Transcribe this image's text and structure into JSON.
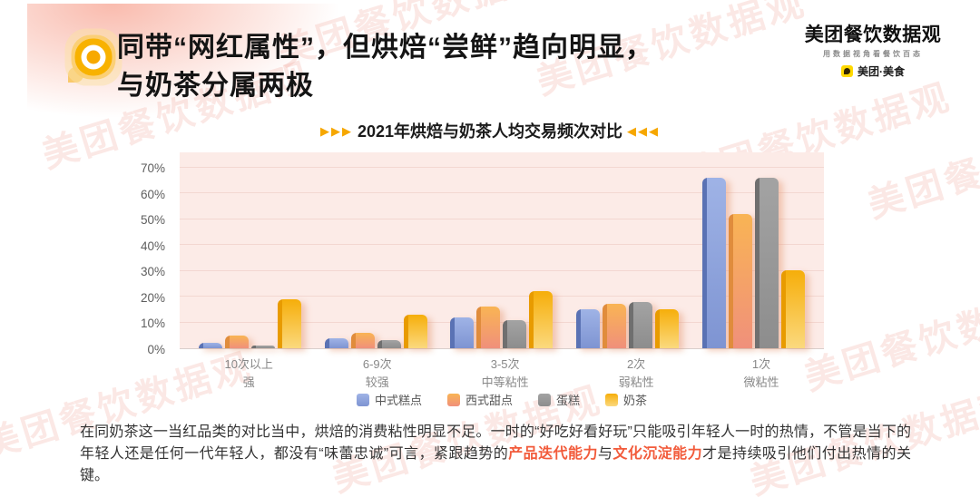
{
  "header": {
    "title_line1": "同带“网红属性”，但烘焙“尝鲜”趋向明显，",
    "title_line2": "与奶茶分属两极",
    "logo": {
      "brand": "美团餐饮数据观",
      "tagline": "用数据视角看餐饮百态",
      "sub_brand": "美团·美食"
    }
  },
  "chart_data": {
    "type": "bar",
    "title": "2021年烘焙与奶茶人均交易频次对比",
    "arrows_left": "▶▶▶",
    "arrows_right": "◀◀◀",
    "categories": [
      {
        "line1": "10次以上",
        "line2": "强"
      },
      {
        "line1": "6-9次",
        "line2": "较强"
      },
      {
        "line1": "3-5次",
        "line2": "中等粘性"
      },
      {
        "line1": "2次",
        "line2": "弱粘性"
      },
      {
        "line1": "1次",
        "line2": "微粘性"
      }
    ],
    "series": [
      {
        "name": "中式糕点",
        "values": [
          2,
          4,
          12,
          15,
          66
        ],
        "color_top": "#9fb3e6",
        "color_bottom": "#7e94d2",
        "edge": "#5a72b4"
      },
      {
        "name": "西式甜点",
        "values": [
          5,
          6,
          16,
          17,
          52
        ],
        "color_top": "#f9b454",
        "color_bottom": "#f0907b",
        "edge": "#e08c3c"
      },
      {
        "name": "蛋糕",
        "values": [
          1,
          3,
          11,
          18,
          66
        ],
        "color_top": "#a3a3a3",
        "color_bottom": "#8d8d8d",
        "edge": "#6f6f6f"
      },
      {
        "name": "奶茶",
        "values": [
          19,
          13,
          22,
          15,
          30
        ],
        "color_top": "#f6ae0a",
        "color_bottom": "#fbd97e",
        "edge": "#e89b00"
      }
    ],
    "yticks": [
      "70%",
      "60%",
      "50%",
      "40%",
      "30%",
      "20%",
      "10%",
      "0%"
    ],
    "ylim": [
      0,
      76
    ],
    "grid": true,
    "legend_position": "bottom",
    "plot_bg": "#fcebe7",
    "xlabel": "",
    "ylabel": ""
  },
  "footer": {
    "paragraph_segments": [
      {
        "text": "在同奶茶这一当红品类的对比当中，烘焙的消费粘性明显不足。一时的“好吃好看好玩”只能吸引年轻人一时的热情，不管是当下的年轻人还是任何一代年轻人，都没有“味蕾忠诚”可言，紧跟趋势的",
        "highlight": false
      },
      {
        "text": "产品迭代能力",
        "highlight": true
      },
      {
        "text": "与",
        "highlight": false
      },
      {
        "text": "文化沉淀能力",
        "highlight": true
      },
      {
        "text": "才是持续吸引他们付出热情的关键。",
        "highlight": false
      }
    ]
  },
  "watermark": {
    "text": "美团餐饮数据观"
  },
  "colors": {
    "accent_yellow": "#f7b500",
    "highlight_red": "#f25b3b",
    "plot_background": "#fcebe7",
    "watermark_pink": "#eea89b"
  }
}
